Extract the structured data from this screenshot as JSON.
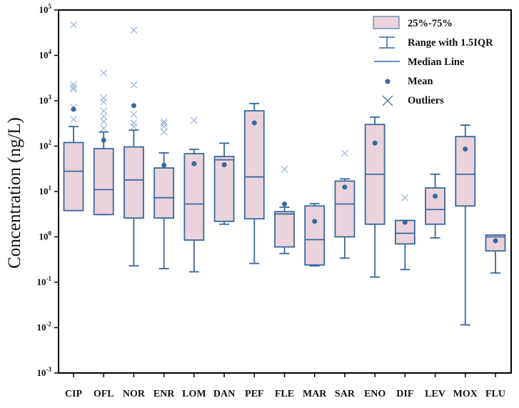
{
  "chart_data": {
    "type": "box",
    "ylabel": "Concentration (ng/L)",
    "yscale": "log",
    "ylim": [
      0.001,
      100000
    ],
    "yticks": [
      {
        "base": "10",
        "exp": "-3",
        "value": 0.001
      },
      {
        "base": "10",
        "exp": "-2",
        "value": 0.01
      },
      {
        "base": "10",
        "exp": "-1",
        "value": 0.1
      },
      {
        "base": "10",
        "exp": "0",
        "value": 1
      },
      {
        "base": "10",
        "exp": "1",
        "value": 10
      },
      {
        "base": "10",
        "exp": "2",
        "value": 100
      },
      {
        "base": "10",
        "exp": "3",
        "value": 1000
      },
      {
        "base": "10",
        "exp": "4",
        "value": 10000
      },
      {
        "base": "10",
        "exp": "5",
        "value": 100000
      }
    ],
    "grid": false,
    "legend_position": "top-right",
    "legend": {
      "box": "25%-75%",
      "whisker": "Range with 1.5IQR",
      "median": "Median Line",
      "mean": "Mean",
      "outliers": "Outliers"
    },
    "colors": {
      "box_fill": "#ead3dc",
      "stroke": "#3a689c",
      "outlier": "#93b0d6"
    },
    "categories": [
      "CIP",
      "OFL",
      "NOR",
      "ENR",
      "LOM",
      "DAN",
      "PEF",
      "FLE",
      "MAR",
      "SAR",
      "ENO",
      "DIF",
      "LEV",
      "MOX",
      "FLU"
    ],
    "boxes": [
      {
        "whisker_low": 3.8,
        "q1": 3.8,
        "median": 28,
        "q3": 120,
        "whisker_high": 270,
        "mean": 650,
        "outliers": [
          47000,
          2300,
          2000,
          1800,
          720,
          390
        ]
      },
      {
        "whisker_low": 3.1,
        "q1": 3.1,
        "median": 11,
        "q3": 88,
        "whisker_high": 205,
        "mean": 135,
        "outliers": [
          4100,
          1150,
          950,
          600,
          450,
          350,
          245
        ]
      },
      {
        "whisker_low": 0.23,
        "q1": 2.6,
        "median": 18,
        "q3": 96,
        "whisker_high": 225,
        "mean": 780,
        "outliers": [
          36000,
          2240,
          500,
          325,
          270
        ]
      },
      {
        "whisker_low": 0.2,
        "q1": 2.6,
        "median": 7.3,
        "q3": 33,
        "whisker_high": 71,
        "mean": 38,
        "outliers": [
          350,
          315,
          270,
          205
        ]
      },
      {
        "whisker_low": 0.17,
        "q1": 0.85,
        "median": 5.3,
        "q3": 68,
        "whisker_high": 85,
        "mean": 41,
        "outliers": [
          370
        ]
      },
      {
        "whisker_low": 1.9,
        "q1": 2.2,
        "median": 50,
        "q3": 59,
        "whisker_high": 116,
        "mean": 39,
        "outliers": []
      },
      {
        "whisker_low": 0.26,
        "q1": 2.5,
        "median": 21,
        "q3": 600,
        "whisker_high": 870,
        "mean": 325,
        "outliers": []
      },
      {
        "whisker_low": 0.43,
        "q1": 0.6,
        "median": 3.2,
        "q3": 3.6,
        "whisker_high": 4.5,
        "mean": 5.3,
        "outliers": [
          31
        ]
      },
      {
        "whisker_low": 0.23,
        "q1": 0.24,
        "median": 0.87,
        "q3": 4.8,
        "whisker_high": 5.4,
        "mean": 2.2,
        "outliers": []
      },
      {
        "whisker_low": 0.34,
        "q1": 1.0,
        "median": 5.3,
        "q3": 17,
        "whisker_high": 19,
        "mean": 12.5,
        "outliers": [
          70
        ]
      },
      {
        "whisker_low": 0.13,
        "q1": 1.9,
        "median": 24,
        "q3": 300,
        "whisker_high": 435,
        "mean": 117,
        "outliers": []
      },
      {
        "whisker_low": 0.19,
        "q1": 0.7,
        "median": 1.2,
        "q3": 2.3,
        "whisker_high": 2.3,
        "mean": 2.1,
        "outliers": [
          7.3
        ]
      },
      {
        "whisker_low": 0.95,
        "q1": 1.9,
        "median": 4.0,
        "q3": 12,
        "whisker_high": 24,
        "mean": 7.9,
        "outliers": []
      },
      {
        "whisker_low": 0.0115,
        "q1": 4.8,
        "median": 24,
        "q3": 162,
        "whisker_high": 290,
        "mean": 86,
        "outliers": []
      },
      {
        "whisker_low": 0.16,
        "q1": 0.49,
        "median": 1.0,
        "q3": 1.1,
        "whisker_high": 1.1,
        "mean": 0.82,
        "outliers": []
      }
    ]
  }
}
